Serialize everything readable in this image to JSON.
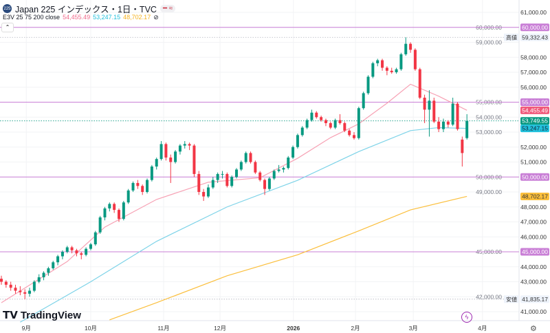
{
  "header": {
    "logo_text": "225",
    "title": "Japan 225 インデックス・1日・TVC",
    "indicator_label": "E3V 25 75 200 close",
    "ema25": "54,455.49",
    "ema75": "53,247.15",
    "ema200": "48,702.17"
  },
  "brand": "TradingView",
  "colors": {
    "up": "#089981",
    "down": "#f23645",
    "ema25": "#f7a1b4",
    "ema75": "#7dd3e8",
    "ema200": "#fbbf3c",
    "hline": "#c97fd6",
    "last": "#089981"
  },
  "chart_data": {
    "type": "candlestick",
    "ylim": [
      40600,
      61200
    ],
    "yticks": [
      41000,
      42000,
      43000,
      44000,
      45000,
      46000,
      47000,
      48000,
      49000,
      50000,
      51000,
      52000,
      53000,
      54000,
      55000,
      56000,
      57000,
      58000,
      59000,
      60000,
      61000
    ],
    "ytick_labels": [
      "41,000.00",
      "42,000.00",
      "43,000.00",
      "44,000.00",
      "45,000.00",
      "46,000.00",
      "47,000.00",
      "48,000.00",
      "49,000.00",
      "50,000.00",
      "51,000.00",
      "52,000.00",
      "53,000.00",
      "54,000.00",
      "55,000.00",
      "56,000.00",
      "57,000.00",
      "58,000.00",
      "59,000.00",
      "60,000.00",
      "61,000.00"
    ],
    "xticks": [
      {
        "label": "9月",
        "index": 5.3
      },
      {
        "label": "10月",
        "index": 19
      },
      {
        "label": "11月",
        "index": 34.5
      },
      {
        "label": "12月",
        "index": 46.5
      },
      {
        "label": "2026",
        "index": 62.1
      },
      {
        "label": "2月",
        "index": 75.3
      },
      {
        "label": "3月",
        "index": 87.6
      },
      {
        "label": "4月",
        "index": 102.3
      }
    ],
    "ohlc": [
      [
        43200,
        43400,
        42800,
        43000
      ],
      [
        43000,
        43100,
        42600,
        42800
      ],
      [
        42800,
        43000,
        42400,
        42600
      ],
      [
        42600,
        42800,
        42200,
        42400
      ],
      [
        42400,
        42700,
        42100,
        42300
      ],
      [
        42300,
        42500,
        41835,
        42200
      ],
      [
        42200,
        42600,
        42000,
        42400
      ],
      [
        42400,
        43100,
        42300,
        43000
      ],
      [
        43000,
        43500,
        42900,
        43300
      ],
      [
        43300,
        43700,
        43100,
        43600
      ],
      [
        43600,
        44000,
        43400,
        43900
      ],
      [
        43900,
        44400,
        43800,
        44300
      ],
      [
        44300,
        44800,
        44100,
        44700
      ],
      [
        44700,
        45100,
        44500,
        45000
      ],
      [
        45000,
        45400,
        44900,
        45300
      ],
      [
        45300,
        45400,
        44900,
        45100
      ],
      [
        45100,
        45200,
        44700,
        44900
      ],
      [
        44900,
        45000,
        44500,
        44800
      ],
      [
        44800,
        45300,
        44700,
        45200
      ],
      [
        45200,
        45600,
        45100,
        45500
      ],
      [
        45500,
        46400,
        45400,
        46300
      ],
      [
        46300,
        47400,
        46200,
        47300
      ],
      [
        47300,
        48000,
        47100,
        47900
      ],
      [
        47900,
        48300,
        47700,
        48200
      ],
      [
        48200,
        48300,
        47600,
        47800
      ],
      [
        47800,
        47900,
        47000,
        47200
      ],
      [
        47200,
        48400,
        47100,
        48300
      ],
      [
        48300,
        49200,
        48200,
        49100
      ],
      [
        49100,
        49700,
        49000,
        49600
      ],
      [
        49600,
        49800,
        49200,
        49400
      ],
      [
        49400,
        49500,
        48800,
        49000
      ],
      [
        49000,
        49900,
        48900,
        49800
      ],
      [
        49800,
        50800,
        49700,
        50700
      ],
      [
        50700,
        51300,
        50500,
        51200
      ],
      [
        51200,
        52400,
        51100,
        52200
      ],
      [
        52200,
        52300,
        51100,
        51300
      ],
      [
        51300,
        51500,
        49600,
        51000
      ],
      [
        51000,
        51800,
        50900,
        51700
      ],
      [
        51700,
        52200,
        51500,
        52100
      ],
      [
        52100,
        52400,
        51900,
        52200
      ],
      [
        52200,
        52300,
        51800,
        52100
      ],
      [
        52100,
        52200,
        50000,
        50200
      ],
      [
        50200,
        50400,
        48800,
        49000
      ],
      [
        49000,
        49200,
        48400,
        48700
      ],
      [
        48700,
        49500,
        48600,
        49300
      ],
      [
        49300,
        50000,
        49200,
        49800
      ],
      [
        49800,
        50300,
        49600,
        50200
      ],
      [
        50200,
        50400,
        49900,
        50200
      ],
      [
        50200,
        50300,
        49300,
        49400
      ],
      [
        49400,
        50100,
        49300,
        50000
      ],
      [
        50000,
        50600,
        49900,
        50500
      ],
      [
        50500,
        51100,
        50400,
        51000
      ],
      [
        51000,
        51700,
        50900,
        51600
      ],
      [
        51600,
        51700,
        50900,
        51000
      ],
      [
        51000,
        51100,
        50200,
        50300
      ],
      [
        50300,
        50400,
        49700,
        49800
      ],
      [
        49800,
        49900,
        48800,
        49200
      ],
      [
        49200,
        50000,
        49100,
        49900
      ],
      [
        49900,
        50500,
        49800,
        50400
      ],
      [
        50400,
        50800,
        50300,
        50500
      ],
      [
        50500,
        50700,
        50300,
        50600
      ],
      [
        50600,
        51400,
        50500,
        51300
      ],
      [
        51300,
        52100,
        51200,
        52000
      ],
      [
        52000,
        52900,
        51900,
        52800
      ],
      [
        52800,
        53400,
        52700,
        53300
      ],
      [
        53300,
        53900,
        53200,
        53800
      ],
      [
        53800,
        54500,
        53700,
        54300
      ],
      [
        54300,
        54400,
        53900,
        54000
      ],
      [
        54000,
        54100,
        53700,
        53800
      ],
      [
        53800,
        53900,
        53400,
        53600
      ],
      [
        53600,
        53700,
        53200,
        53300
      ],
      [
        53300,
        53900,
        53200,
        53800
      ],
      [
        53800,
        54200,
        53500,
        53600
      ],
      [
        53600,
        53700,
        53000,
        53100
      ],
      [
        53100,
        53200,
        52700,
        52800
      ],
      [
        52800,
        53000,
        52500,
        52600
      ],
      [
        52600,
        54700,
        52500,
        54600
      ],
      [
        54600,
        55700,
        54500,
        55600
      ],
      [
        55600,
        56800,
        55500,
        56700
      ],
      [
        56700,
        57700,
        56600,
        57600
      ],
      [
        57600,
        57900,
        57400,
        57800
      ],
      [
        57800,
        57900,
        57100,
        57300
      ],
      [
        57300,
        57400,
        56800,
        57100
      ],
      [
        57100,
        57300,
        56900,
        57000
      ],
      [
        57000,
        57300,
        56900,
        57200
      ],
      [
        57200,
        58300,
        57100,
        58200
      ],
      [
        58200,
        59332.43,
        58100,
        58900
      ],
      [
        58900,
        59000,
        58300,
        58500
      ],
      [
        58500,
        58600,
        57100,
        57200
      ],
      [
        57200,
        57300,
        55200,
        55300
      ],
      [
        55300,
        55500,
        53600,
        54500
      ],
      [
        54500,
        55800,
        52700,
        55100
      ],
      [
        55100,
        55300,
        53600,
        53700
      ],
      [
        53700,
        54000,
        53000,
        53200
      ],
      [
        53200,
        53900,
        53000,
        53700
      ],
      [
        53700,
        53800,
        53300,
        53500
      ],
      [
        53500,
        55300,
        53400,
        54900
      ],
      [
        54900,
        55000,
        53100,
        53200
      ],
      [
        52500,
        52700,
        50700,
        51600
      ],
      [
        52600,
        54200,
        52500,
        53749.55
      ]
    ],
    "ema": [
      {
        "name": "EMA 25",
        "color": "#f7a1b4",
        "points": [
          [
            0,
            41600
          ],
          [
            14,
            44350
          ],
          [
            22,
            46650
          ],
          [
            33,
            48500
          ],
          [
            44,
            49650
          ],
          [
            55,
            49950
          ],
          [
            63,
            51250
          ],
          [
            70,
            52630
          ],
          [
            76,
            53550
          ],
          [
            82,
            54930
          ],
          [
            87,
            56200
          ],
          [
            93,
            55400
          ],
          [
            99,
            54455.49
          ]
        ]
      },
      {
        "name": "EMA 75",
        "color": "#7dd3e8",
        "points": [
          [
            4,
            40300
          ],
          [
            19,
            43000
          ],
          [
            33,
            45700
          ],
          [
            48,
            48000
          ],
          [
            63,
            49780
          ],
          [
            76,
            51700
          ],
          [
            87,
            53100
          ],
          [
            93,
            53300
          ],
          [
            99,
            53247.15
          ]
        ]
      },
      {
        "name": "EMA 200",
        "color": "#fbbf3c",
        "points": [
          [
            23,
            40450
          ],
          [
            33,
            41600
          ],
          [
            48,
            43400
          ],
          [
            63,
            44800
          ],
          [
            76,
            46400
          ],
          [
            87,
            47800
          ],
          [
            99,
            48702.17
          ]
        ]
      }
    ],
    "hlines": [
      {
        "value": 60000,
        "label": "60,000.00"
      },
      {
        "value": 55000,
        "label": "55,000.00"
      },
      {
        "value": 50000,
        "label": "50,000.00"
      },
      {
        "value": 45000,
        "label": "45,000.00"
      }
    ],
    "high": {
      "label": "高値",
      "value": 59332.43,
      "text": "59,332.43"
    },
    "low": {
      "label": "安値",
      "value": 41835.17,
      "text": "41,835.17"
    },
    "last": {
      "value": 53749.55,
      "text": "53,749.55"
    },
    "ema_labels": [
      {
        "value": 54455.49,
        "text": "54,455.49",
        "color": "#f7a1b4"
      },
      {
        "value": 53247.15,
        "text": "53,247.15",
        "color": "#22c1dc"
      },
      {
        "value": 48702.17,
        "text": "48,702.17",
        "color": "#fbbf3c"
      }
    ]
  }
}
